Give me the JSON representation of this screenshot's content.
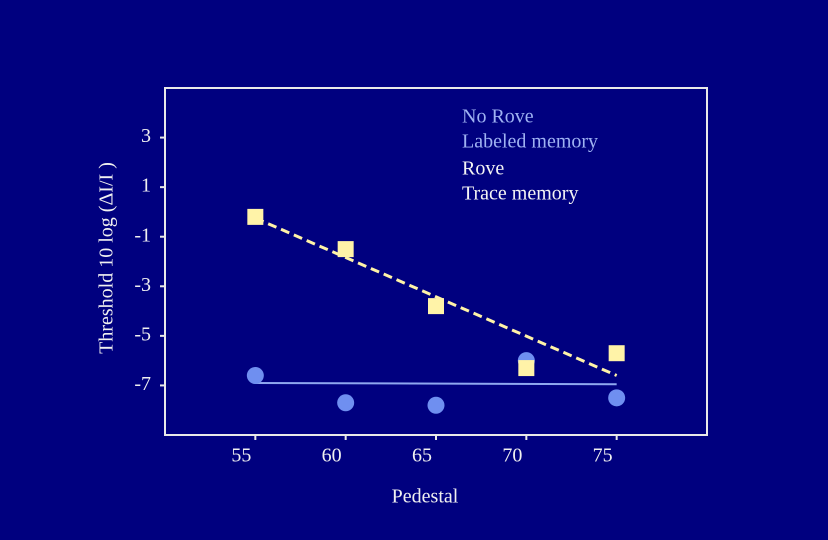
{
  "chart_data": {
    "type": "scatter",
    "ylabel": "Threshold 10 log (ΔI/I )",
    "xlabel": "Pedestal",
    "xlim": [
      50,
      80
    ],
    "ylim": [
      -9,
      5
    ],
    "xticks": [
      55,
      60,
      65,
      70,
      75
    ],
    "yticks": [
      3,
      1,
      -1,
      -3,
      -5,
      -7
    ],
    "series": [
      {
        "name": "No Rove",
        "description": "Labeled memory",
        "color": "#6f8ff0",
        "text_color": "#9fb2f2",
        "marker": "circle",
        "x": [
          55,
          60,
          65,
          70,
          75
        ],
        "values": [
          -6.6,
          -7.7,
          -7.8,
          -6.0,
          -7.5
        ],
        "fit_x": [
          55,
          75
        ],
        "fit_values": [
          -6.9,
          -6.95
        ],
        "fit_color": "#8fa8f0",
        "fit_dash": false
      },
      {
        "name": "Rove",
        "description": "Trace memory",
        "color": "#fff3a8",
        "text_color": "#f4f4f4",
        "marker": "square",
        "x": [
          55,
          60,
          65,
          70,
          75
        ],
        "values": [
          -0.2,
          -1.5,
          -3.8,
          -6.3,
          -5.7
        ],
        "fit_x": [
          55,
          75
        ],
        "fit_values": [
          -0.25,
          -6.6
        ],
        "fit_color": "#fff3a8",
        "fit_dash": true
      }
    ]
  }
}
